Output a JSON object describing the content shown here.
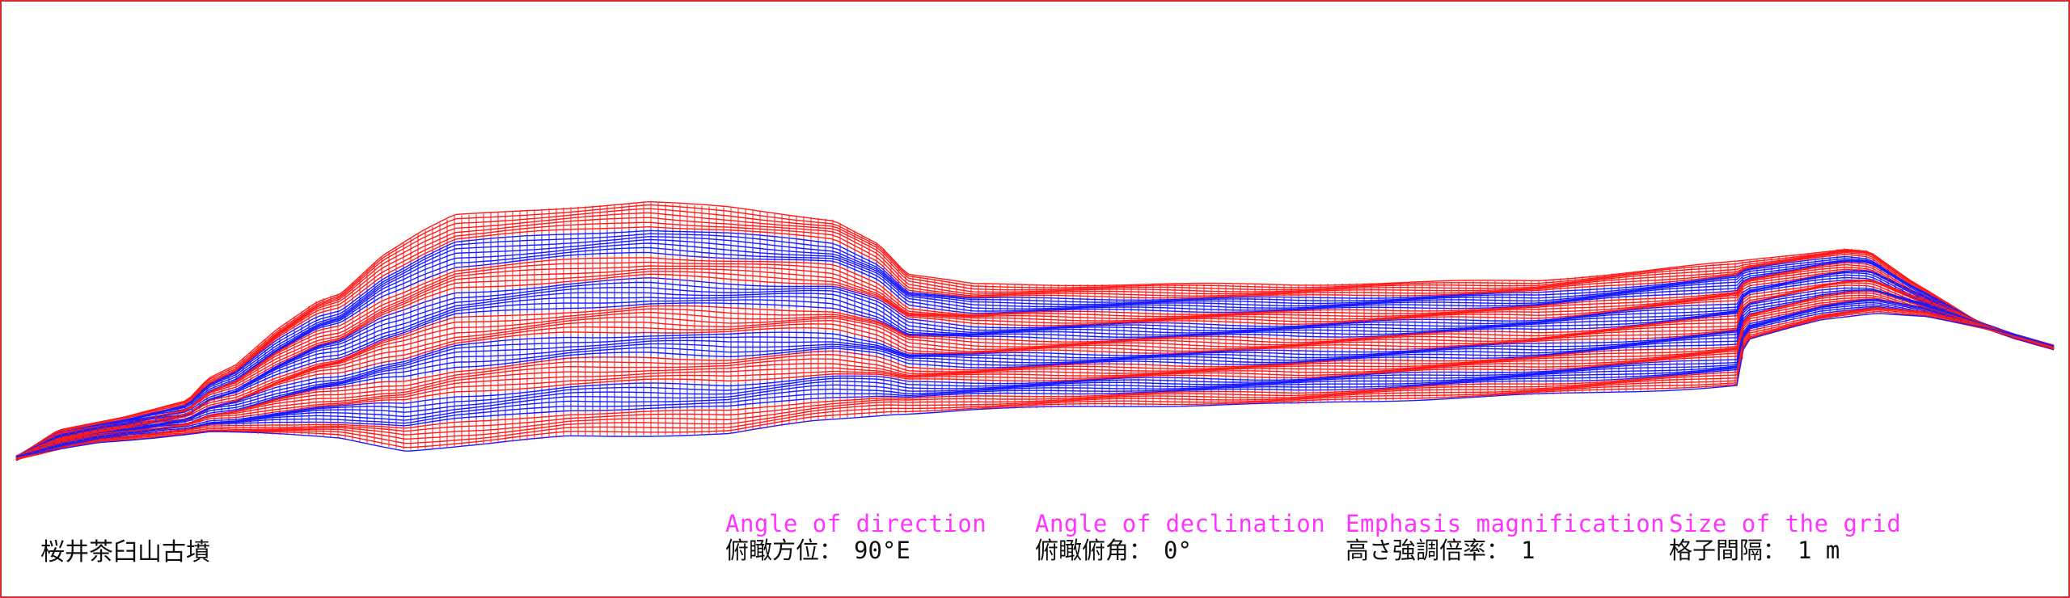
{
  "site_name": "桜井茶臼山古墳",
  "colors": {
    "red_mesh": "#ff1a1a",
    "blue_mesh": "#1a1aff",
    "label_en": "#ff33ff",
    "frame": "#d22a2a"
  },
  "parameters": {
    "direction": {
      "en": "Angle of direction",
      "jp": "俯瞰方位：",
      "value": "90°E"
    },
    "declination": {
      "en": "Angle of declination",
      "jp": "俯瞰俯角：",
      "value": "0°"
    },
    "emphasis": {
      "en": "Emphasis magnification",
      "jp": "高さ強調倍率：",
      "value": "1"
    },
    "grid": {
      "en": "Size of the grid",
      "jp": "格子間隔：",
      "value": "1 m"
    }
  }
}
